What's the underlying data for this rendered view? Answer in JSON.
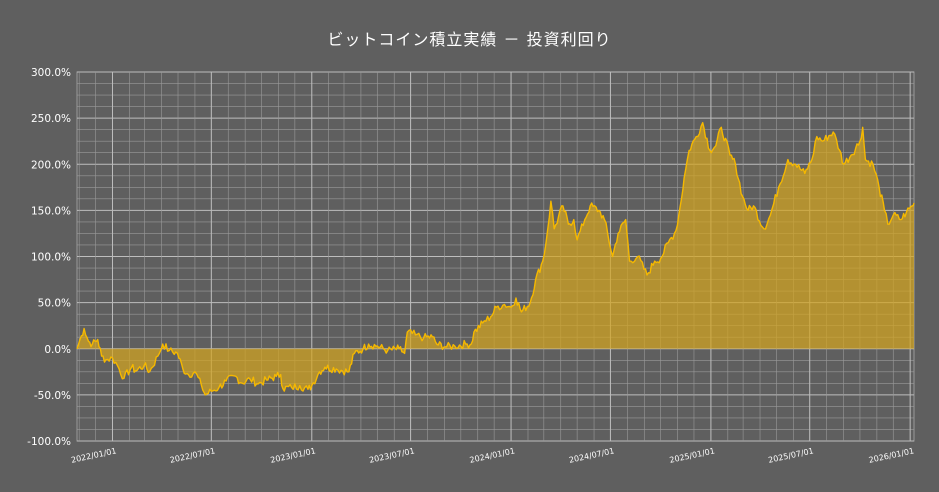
{
  "chart_data": {
    "type": "area",
    "title": "ビットコイン積立実績 － 投資利回り",
    "xlabel": "",
    "ylabel": "",
    "ylim": [
      -100,
      300
    ],
    "y_ticks": [
      300,
      250,
      200,
      150,
      100,
      50,
      0,
      -50,
      -100
    ],
    "y_tick_labels": [
      "300.0%",
      "250.0%",
      "200.0%",
      "150.0%",
      "100.0%",
      "50.0%",
      "0.0%",
      "-50.0%",
      "-100.0%"
    ],
    "xlim": [
      "2021-10-28",
      "2026-01-08"
    ],
    "x_ticks": [
      "2022-01-01",
      "2022-07-01",
      "2023-01-01",
      "2023-07-01",
      "2024-01-01",
      "2024-07-01",
      "2025-01-01",
      "2025-07-01",
      "2026-01-01"
    ],
    "x_tick_labels": [
      "2022/01/01",
      "2022/07/01",
      "2023/01/01",
      "2023/07/01",
      "2024/01/01",
      "2024/07/01",
      "2025/01/01",
      "2025/07/01",
      "2026/01/01"
    ],
    "grid": true,
    "colors": {
      "line": "#f5b800",
      "fill": "#d4a520",
      "background": "#5f5f5f",
      "grid": "#9a9a9a"
    },
    "series": [
      {
        "values": [
          [
            "2021-10-28",
            0
          ],
          [
            "2021-11-05",
            14
          ],
          [
            "2021-11-10",
            22
          ],
          [
            "2021-11-18",
            8
          ],
          [
            "2021-11-25",
            5
          ],
          [
            "2021-12-05",
            10
          ],
          [
            "2021-12-12",
            -8
          ],
          [
            "2021-12-20",
            -12
          ],
          [
            "2022-01-01",
            -10
          ],
          [
            "2022-01-10",
            -18
          ],
          [
            "2022-01-22",
            -32
          ],
          [
            "2022-02-05",
            -20
          ],
          [
            "2022-02-12",
            -24
          ],
          [
            "2022-02-28",
            -18
          ],
          [
            "2022-03-10",
            -25
          ],
          [
            "2022-03-25",
            -8
          ],
          [
            "2022-04-03",
            5
          ],
          [
            "2022-04-15",
            -2
          ],
          [
            "2022-04-30",
            -5
          ],
          [
            "2022-05-10",
            -22
          ],
          [
            "2022-05-20",
            -28
          ],
          [
            "2022-06-01",
            -25
          ],
          [
            "2022-06-13",
            -40
          ],
          [
            "2022-06-20",
            -50
          ],
          [
            "2022-07-01",
            -46
          ],
          [
            "2022-07-15",
            -42
          ],
          [
            "2022-07-28",
            -35
          ],
          [
            "2022-08-15",
            -30
          ],
          [
            "2022-08-25",
            -37
          ],
          [
            "2022-09-10",
            -33
          ],
          [
            "2022-09-25",
            -38
          ],
          [
            "2022-10-10",
            -34
          ],
          [
            "2022-10-28",
            -30
          ],
          [
            "2022-11-05",
            -28
          ],
          [
            "2022-11-09",
            -43
          ],
          [
            "2022-11-25",
            -42
          ],
          [
            "2022-12-10",
            -40
          ],
          [
            "2022-12-25",
            -44
          ],
          [
            "2023-01-01",
            -40
          ],
          [
            "2023-01-15",
            -25
          ],
          [
            "2023-01-25",
            -20
          ],
          [
            "2023-02-15",
            -22
          ],
          [
            "2023-03-10",
            -25
          ],
          [
            "2023-03-20",
            -5
          ],
          [
            "2023-04-05",
            0
          ],
          [
            "2023-04-15",
            5
          ],
          [
            "2023-05-01",
            3
          ],
          [
            "2023-05-20",
            -2
          ],
          [
            "2023-06-10",
            0
          ],
          [
            "2023-06-20",
            -5
          ],
          [
            "2023-06-25",
            18
          ],
          [
            "2023-07-10",
            15
          ],
          [
            "2023-07-25",
            12
          ],
          [
            "2023-08-10",
            13
          ],
          [
            "2023-08-18",
            5
          ],
          [
            "2023-09-05",
            2
          ],
          [
            "2023-09-20",
            3
          ],
          [
            "2023-10-10",
            5
          ],
          [
            "2023-10-20",
            5
          ],
          [
            "2023-10-25",
            18
          ],
          [
            "2023-11-10",
            28
          ],
          [
            "2023-11-25",
            35
          ],
          [
            "2023-12-05",
            45
          ],
          [
            "2023-12-20",
            48
          ],
          [
            "2024-01-01",
            45
          ],
          [
            "2024-01-10",
            55
          ],
          [
            "2024-01-20",
            40
          ],
          [
            "2024-02-05",
            50
          ],
          [
            "2024-02-15",
            75
          ],
          [
            "2024-02-28",
            95
          ],
          [
            "2024-03-05",
            115
          ],
          [
            "2024-03-14",
            160
          ],
          [
            "2024-03-20",
            130
          ],
          [
            "2024-04-05",
            155
          ],
          [
            "2024-04-15",
            135
          ],
          [
            "2024-04-25",
            140
          ],
          [
            "2024-05-01",
            118
          ],
          [
            "2024-05-15",
            140
          ],
          [
            "2024-05-25",
            155
          ],
          [
            "2024-06-10",
            150
          ],
          [
            "2024-06-20",
            140
          ],
          [
            "2024-07-05",
            100
          ],
          [
            "2024-07-15",
            125
          ],
          [
            "2024-07-29",
            140
          ],
          [
            "2024-08-05",
            95
          ],
          [
            "2024-08-20",
            100
          ],
          [
            "2024-09-06",
            80
          ],
          [
            "2024-09-20",
            95
          ],
          [
            "2024-10-01",
            98
          ],
          [
            "2024-10-15",
            115
          ],
          [
            "2024-10-29",
            128
          ],
          [
            "2024-11-06",
            155
          ],
          [
            "2024-11-13",
            185
          ],
          [
            "2024-11-22",
            215
          ],
          [
            "2024-12-05",
            230
          ],
          [
            "2024-12-17",
            245
          ],
          [
            "2024-12-30",
            215
          ],
          [
            "2025-01-10",
            220
          ],
          [
            "2025-01-20",
            240
          ],
          [
            "2025-02-05",
            210
          ],
          [
            "2025-02-15",
            200
          ],
          [
            "2025-02-28",
            165
          ],
          [
            "2025-03-10",
            150
          ],
          [
            "2025-03-20",
            155
          ],
          [
            "2025-04-08",
            130
          ],
          [
            "2025-04-20",
            145
          ],
          [
            "2025-05-05",
            175
          ],
          [
            "2025-05-22",
            205
          ],
          [
            "2025-06-05",
            200
          ],
          [
            "2025-06-22",
            190
          ],
          [
            "2025-07-05",
            205
          ],
          [
            "2025-07-14",
            230
          ],
          [
            "2025-07-25",
            225
          ],
          [
            "2025-08-13",
            235
          ],
          [
            "2025-08-25",
            215
          ],
          [
            "2025-09-01",
            200
          ],
          [
            "2025-09-15",
            210
          ],
          [
            "2025-10-01",
            225
          ],
          [
            "2025-10-06",
            240
          ],
          [
            "2025-10-11",
            205
          ],
          [
            "2025-10-25",
            200
          ],
          [
            "2025-11-05",
            175
          ],
          [
            "2025-11-15",
            150
          ],
          [
            "2025-11-21",
            135
          ],
          [
            "2025-12-01",
            145
          ],
          [
            "2025-12-15",
            140
          ],
          [
            "2025-12-25",
            148
          ],
          [
            "2026-01-05",
            155
          ],
          [
            "2026-01-08",
            158
          ]
        ]
      }
    ]
  }
}
